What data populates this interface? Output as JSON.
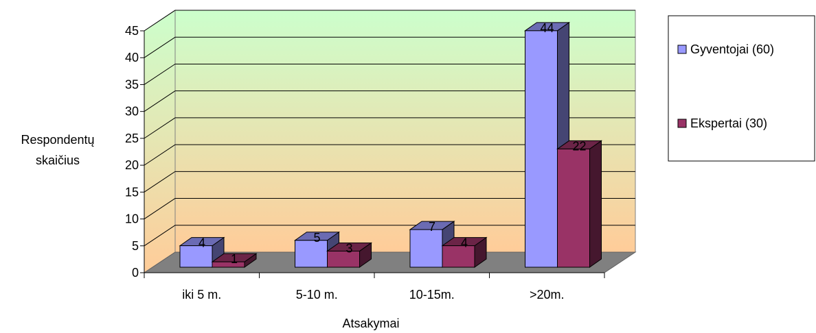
{
  "chart_data": {
    "type": "bar",
    "categories": [
      "iki 5 m.",
      "5-10 m.",
      "10-15m.",
      ">20m."
    ],
    "series": [
      {
        "name": "Gyventojai (60)",
        "values": [
          4,
          5,
          7,
          44
        ],
        "color": "#9999ff"
      },
      {
        "name": "Ekspertai (30)",
        "values": [
          1,
          3,
          4,
          22
        ],
        "color": "#993366"
      }
    ],
    "ylabel": [
      "Respondentų",
      "skaičius"
    ],
    "xlabel": "Atsakymai",
    "ylim": [
      0,
      45
    ],
    "yticks": [
      0,
      5,
      10,
      15,
      20,
      25,
      30,
      35,
      40,
      45
    ],
    "grid": true,
    "legend_position": "right",
    "view": "3d",
    "colors": {
      "wall_top": "#ccffcc",
      "wall_bottom": "#ffcc99",
      "floor": "#808080"
    }
  }
}
